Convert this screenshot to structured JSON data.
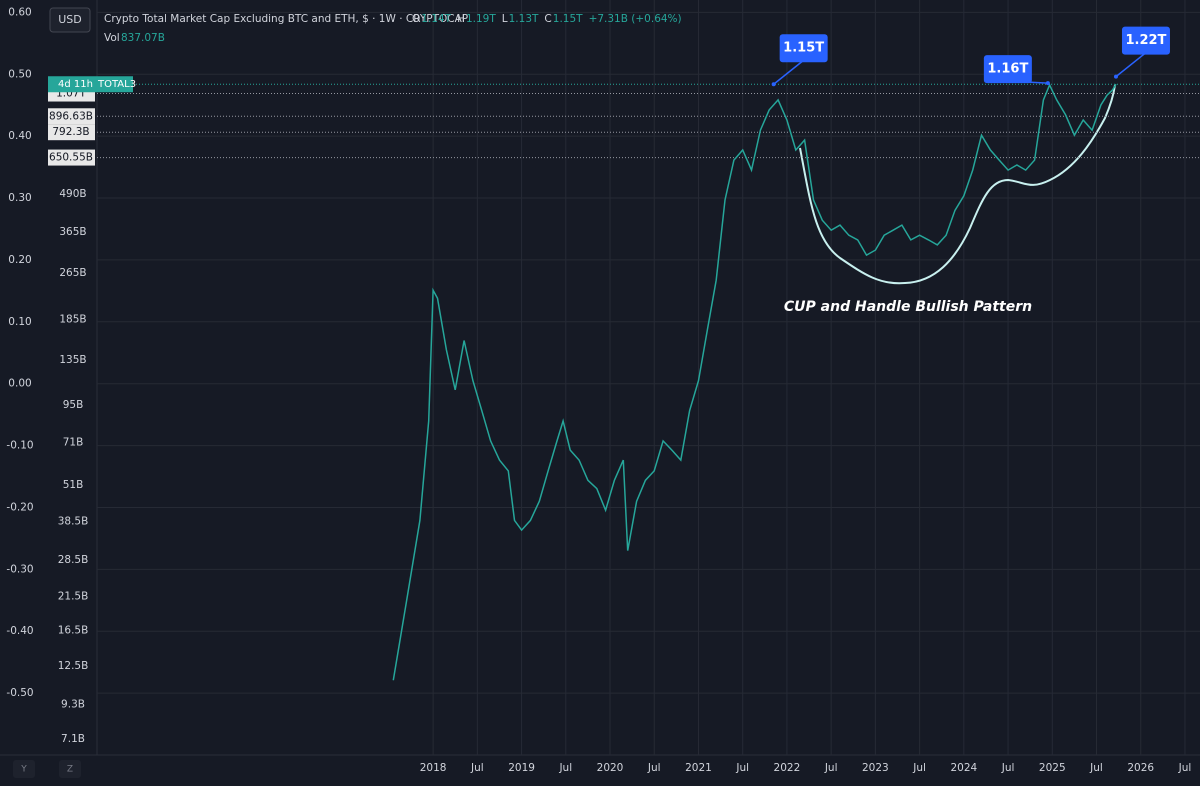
{
  "header": {
    "currency": "USD",
    "title": "Crypto Total Market Cap Excluding BTC and ETH, $ · 1W · CRYPTOCAP",
    "ohlc": [
      {
        "key": "O",
        "value": "1.14T"
      },
      {
        "key": "H",
        "value": "1.19T"
      },
      {
        "key": "L",
        "value": "1.13T"
      },
      {
        "key": "C",
        "value": "1.15T"
      }
    ],
    "change": "+7.31B (+0.64%)",
    "volume_label": "Vol",
    "volume": "837.07B"
  },
  "chart_data": {
    "type": "line",
    "log_scale": true,
    "grid": true,
    "color": "#26a69a",
    "x": [
      2017.55,
      2017.7,
      2017.85,
      2017.95,
      2018.0,
      2018.05,
      2018.15,
      2018.25,
      2018.35,
      2018.45,
      2018.55,
      2018.65,
      2018.75,
      2018.85,
      2018.92,
      2019.0,
      2019.1,
      2019.2,
      2019.3,
      2019.4,
      2019.47,
      2019.55,
      2019.65,
      2019.75,
      2019.85,
      2019.95,
      2020.05,
      2020.15,
      2020.2,
      2020.3,
      2020.4,
      2020.5,
      2020.6,
      2020.7,
      2020.8,
      2020.9,
      2021.0,
      2021.1,
      2021.2,
      2021.3,
      2021.4,
      2021.5,
      2021.6,
      2021.7,
      2021.8,
      2021.9,
      2022.0,
      2022.1,
      2022.2,
      2022.3,
      2022.4,
      2022.5,
      2022.6,
      2022.7,
      2022.8,
      2022.9,
      2023.0,
      2023.1,
      2023.2,
      2023.3,
      2023.4,
      2023.5,
      2023.6,
      2023.7,
      2023.8,
      2023.9,
      2024.0,
      2024.1,
      2024.2,
      2024.3,
      2024.4,
      2024.5,
      2024.6,
      2024.7,
      2024.8,
      2024.9,
      2024.97,
      2025.05,
      2025.15,
      2025.25,
      2025.35,
      2025.45,
      2025.55,
      2025.62,
      2025.68,
      2025.72
    ],
    "values": [
      11.2,
      20.8,
      38.8,
      84,
      232,
      218,
      146,
      107,
      157,
      115,
      91,
      72,
      62,
      57,
      38.8,
      36,
      38.8,
      45,
      57,
      72,
      84,
      67,
      62,
      53,
      49.7,
      42,
      53,
      62,
      30.7,
      45,
      53,
      57,
      72,
      67,
      62,
      91,
      115,
      170,
      251,
      468,
      638,
      690,
      590,
      805,
      942,
      1018,
      871,
      690,
      745,
      468,
      400,
      370,
      385,
      356,
      343,
      305,
      317,
      356,
      370,
      385,
      343,
      356,
      343,
      330,
      356,
      432,
      483,
      590,
      774,
      690,
      638,
      590,
      614,
      590,
      638,
      1018,
      1143,
      1018,
      906,
      774,
      871,
      805,
      979,
      1057,
      1099,
      1150
    ],
    "xlim": [
      2014.2,
      2026.67
    ],
    "xticks": [
      {
        "value": 2018,
        "label": "2018"
      },
      {
        "value": 2018.5,
        "label": "Jul"
      },
      {
        "value": 2019,
        "label": "2019"
      },
      {
        "value": 2019.5,
        "label": "Jul"
      },
      {
        "value": 2020,
        "label": "2020"
      },
      {
        "value": 2020.5,
        "label": "Jul"
      },
      {
        "value": 2021,
        "label": "2021"
      },
      {
        "value": 2021.5,
        "label": "Jul"
      },
      {
        "value": 2022,
        "label": "2022"
      },
      {
        "value": 2022.5,
        "label": "Jul"
      },
      {
        "value": 2023,
        "label": "2023"
      },
      {
        "value": 2023.5,
        "label": "Jul"
      },
      {
        "value": 2024,
        "label": "2024"
      },
      {
        "value": 2024.5,
        "label": "Jul"
      },
      {
        "value": 2025,
        "label": "2025"
      },
      {
        "value": 2025.5,
        "label": "Jul"
      },
      {
        "value": 2026,
        "label": "2026"
      },
      {
        "value": 2026.5,
        "label": "Jul"
      }
    ],
    "ylim": [
      6.27,
      2213
    ],
    "yticks": [
      {
        "value": 490,
        "label": "490B"
      },
      {
        "value": 365,
        "label": "365B"
      },
      {
        "value": 265,
        "label": "265B"
      },
      {
        "value": 185,
        "label": "185B"
      },
      {
        "value": 135,
        "label": "135B"
      },
      {
        "value": 95,
        "label": "95B"
      },
      {
        "value": 71,
        "label": "71B"
      },
      {
        "value": 51,
        "label": "51B"
      },
      {
        "value": 38.5,
        "label": "38.5B"
      },
      {
        "value": 28.5,
        "label": "28.5B"
      },
      {
        "value": 21.5,
        "label": "21.5B"
      },
      {
        "value": 16.5,
        "label": "16.5B"
      },
      {
        "value": 12.5,
        "label": "12.5B"
      },
      {
        "value": 9.3,
        "label": "9.3B"
      },
      {
        "value": 7.1,
        "label": "7.1B"
      }
    ],
    "y2lim": [
      -0.6,
      0.62
    ],
    "y2ticks": [
      {
        "value": 0.6,
        "label": "0.60"
      },
      {
        "value": 0.5,
        "label": "0.50"
      },
      {
        "value": 0.4,
        "label": "0.40"
      },
      {
        "value": 0.3,
        "label": "0.30"
      },
      {
        "value": 0.2,
        "label": "0.20"
      },
      {
        "value": 0.1,
        "label": "0.10"
      },
      {
        "value": 0,
        "label": "0.00"
      },
      {
        "value": -0.1,
        "label": "-0.10"
      },
      {
        "value": -0.2,
        "label": "-0.20"
      },
      {
        "value": -0.3,
        "label": "-0.30"
      },
      {
        "value": -0.4,
        "label": "-0.40"
      },
      {
        "value": -0.5,
        "label": "-0.50"
      }
    ],
    "price_lines": [
      {
        "value": 1070,
        "label": "1.07T"
      },
      {
        "value": 896.63,
        "label": "896.63B"
      },
      {
        "value": 792.3,
        "label": "792.3B"
      },
      {
        "value": 650.55,
        "label": "650.55B"
      }
    ],
    "current_tag": {
      "countdown": "4d 11h",
      "symbol": "TOTAL3"
    },
    "annotations": [
      {
        "x": 2021.85,
        "value": 1150,
        "label": "1.15T"
      },
      {
        "x": 2024.95,
        "value": 1160,
        "label": "1.16T"
      },
      {
        "x": 2025.72,
        "value": 1220,
        "label": "1.22T"
      }
    ],
    "pattern_label": "CUP and Handle Bullish Pattern"
  },
  "controls": [
    "Y",
    "Z"
  ]
}
